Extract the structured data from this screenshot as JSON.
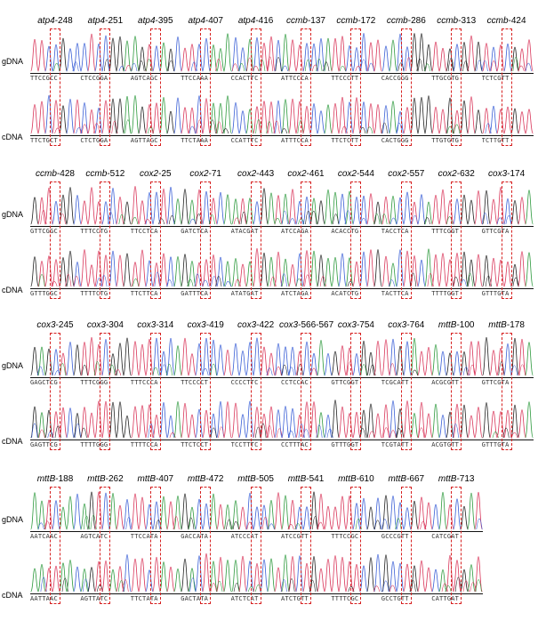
{
  "row_labels": {
    "gdna": "gDNA",
    "cdna": "cDNA"
  },
  "colors": {
    "A": "#2e9a3e",
    "C": "#3a5fd6",
    "G": "#222222",
    "T": "#d9365a",
    "box": "#d62020"
  },
  "rows": [
    {
      "sites": [
        {
          "gene": "atp4",
          "pos": "-248",
          "gseq": "TTCCGCC",
          "cseq": "TTCTGCT"
        },
        {
          "gene": "atp4",
          "pos": "-251",
          "gseq": "CTCCGGA",
          "cseq": "CTCTGGA"
        },
        {
          "gene": "atp4",
          "pos": "-395",
          "gseq": "AGTCAGC",
          "cseq": "AGTTAGC"
        },
        {
          "gene": "atp4",
          "pos": "-407",
          "gseq": "TTCCAAA",
          "cseq": "TTCTAAA"
        },
        {
          "gene": "atp4",
          "pos": "-416",
          "gseq": "CCACTTC",
          "cseq": "CCATTTC"
        },
        {
          "gene": "ccmb",
          "pos": "-137",
          "gseq": "ATTCCCA",
          "cseq": "ATTTCCA"
        },
        {
          "gene": "ccmb",
          "pos": "-172",
          "gseq": "TTCCCTT",
          "cseq": "TTCTCTT"
        },
        {
          "gene": "ccmb",
          "pos": "-286",
          "gseq": "CACCGGG",
          "cseq": "CACTGGG"
        },
        {
          "gene": "ccmb",
          "pos": "-313",
          "gseq": "TTGCGTG",
          "cseq": "TTGTGTG"
        },
        {
          "gene": "ccmb",
          "pos": "-424",
          "gseq": "TCTCGTT",
          "cseq": "TCTTGTT"
        }
      ]
    },
    {
      "sites": [
        {
          "gene": "ccmb",
          "pos": "-428",
          "gseq": "GTTCGGC",
          "cseq": "GTTTGGC"
        },
        {
          "gene": "ccmb",
          "pos": "-512",
          "gseq": "TTTCCTG",
          "cseq": "TTTTCTG"
        },
        {
          "gene": "cox2",
          "pos": "-25",
          "gseq": "TTCCTCA",
          "cseq": "TTCTTCA"
        },
        {
          "gene": "cox2",
          "pos": "-71",
          "gseq": "GATCTCA",
          "cseq": "GATTTCA"
        },
        {
          "gene": "cox2",
          "pos": "-443",
          "gseq": "ATACGAT",
          "cseq": "ATATGAT"
        },
        {
          "gene": "cox2",
          "pos": "-461",
          "gseq": "ATCCAGA",
          "cseq": "ATCTAGA"
        },
        {
          "gene": "cox2",
          "pos": "-544",
          "gseq": "ACACCTG",
          "cseq": "ACATCTG"
        },
        {
          "gene": "cox2",
          "pos": "-557",
          "gseq": "TACCTCA",
          "cseq": "TACTTCA"
        },
        {
          "gene": "cox2",
          "pos": "-632",
          "gseq": "TTTCGGT",
          "cseq": "TTTTGGT"
        },
        {
          "gene": "cox3",
          "pos": "-174",
          "gseq": "GTTCGTA",
          "cseq": "GTTTGTA"
        }
      ]
    },
    {
      "sites": [
        {
          "gene": "cox3",
          "pos": "-245",
          "gseq": "GAGCTCG",
          "cseq": "GAGTTCG"
        },
        {
          "gene": "cox3",
          "pos": "-304",
          "gseq": "TTTCGGG",
          "cseq": "TTTTGGG"
        },
        {
          "gene": "cox3",
          "pos": "-314",
          "gseq": "TTTCCCA",
          "cseq": "TTTTCCA"
        },
        {
          "gene": "cox3",
          "pos": "-419",
          "gseq": "TTCCCCT",
          "cseq": "TTCTCCT"
        },
        {
          "gene": "cox3",
          "pos": "-422",
          "gseq": "CCCCTTC",
          "cseq": "TCCTTTC"
        },
        {
          "gene": "cox3",
          "pos": "-566-567",
          "gseq": "CCTCCAC",
          "cseq": "CCTTTAC"
        },
        {
          "gene": "cox3",
          "pos": "-754",
          "gseq": "GTTCGGT",
          "cseq": "GTTTGGT"
        },
        {
          "gene": "cox3",
          "pos": "-764",
          "gseq": "TCGCATT",
          "cseq": "TCGTATT"
        },
        {
          "gene": "mttB",
          "pos": "-100",
          "gseq": "ACGCGTT",
          "cseq": "ACGTGTT"
        },
        {
          "gene": "mttB",
          "pos": "-178",
          "gseq": "GTTCGTA",
          "cseq": "GTTTGTA"
        }
      ]
    },
    {
      "sites": [
        {
          "gene": "mttB",
          "pos": "-188",
          "gseq": "AATCAAC",
          "cseq": "AATTAAC"
        },
        {
          "gene": "mttB",
          "pos": "-262",
          "gseq": "AGTCATC",
          "cseq": "AGTTATC"
        },
        {
          "gene": "mttB",
          "pos": "-407",
          "gseq": "TTCCATA",
          "cseq": "TTCTATA"
        },
        {
          "gene": "mttB",
          "pos": "-472",
          "gseq": "GACCATA",
          "cseq": "GACTATA"
        },
        {
          "gene": "mttB",
          "pos": "-505",
          "gseq": "ATCCCAT",
          "cseq": "ATCTCAT"
        },
        {
          "gene": "mttB",
          "pos": "-541",
          "gseq": "ATCCGTT",
          "cseq": "ATCTGTT"
        },
        {
          "gene": "mttB",
          "pos": "-610",
          "gseq": "TTTCCGC",
          "cseq": "TTTTCGC"
        },
        {
          "gene": "mttB",
          "pos": "-667",
          "gseq": "GCCCGTT",
          "cseq": "GCCTGTT"
        },
        {
          "gene": "mttB",
          "pos": "-713",
          "gseq": "CATCGAT",
          "cseq": "CATTGAT"
        }
      ]
    }
  ]
}
